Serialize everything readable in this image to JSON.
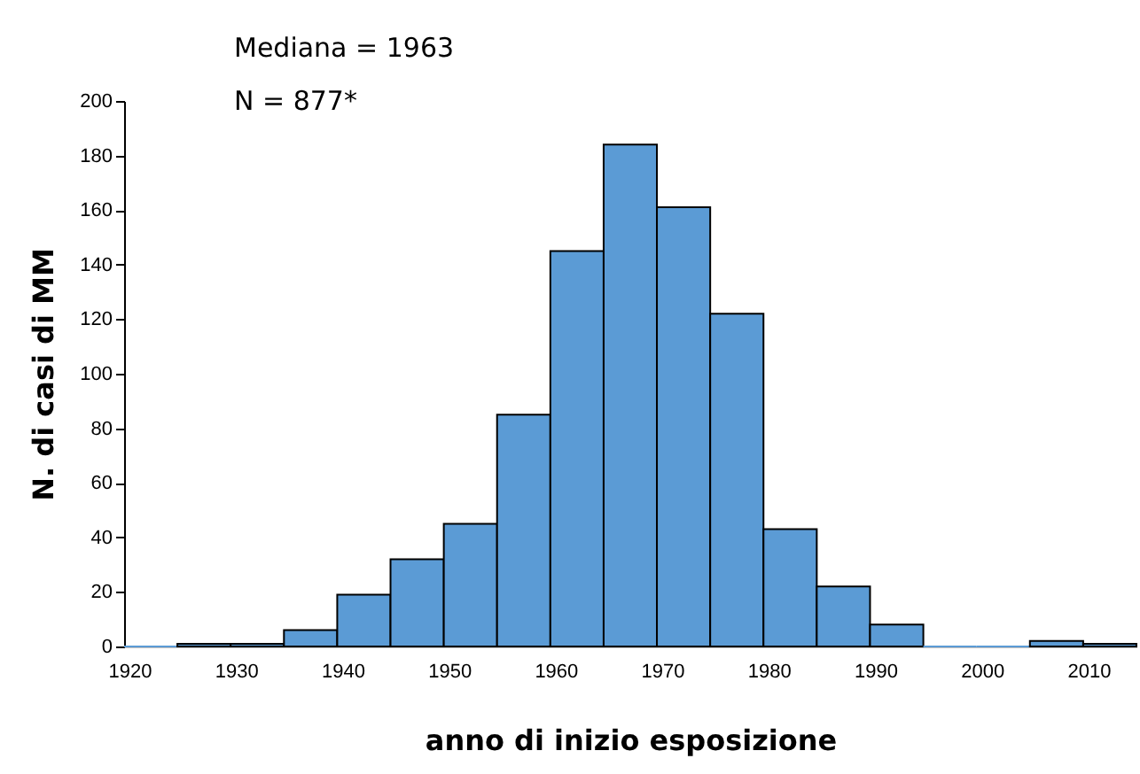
{
  "chart_data": {
    "type": "histogram",
    "xlabel": "anno di inizio esposizione",
    "ylabel": "N. di casi di MM",
    "annotations": [
      "Mediana = 1963",
      "N = 877*"
    ],
    "bins": [
      1919.5,
      1924.5,
      1929.5,
      1934.5,
      1939.5,
      1944.5,
      1949.5,
      1954.5,
      1959.5,
      1964.5,
      1969.5,
      1974.5,
      1979.5,
      1984.5,
      1989.5,
      1994.5,
      1999.5,
      2004.5,
      2009.5,
      2014.5
    ],
    "values": [
      0,
      1,
      1,
      6,
      19,
      32,
      45,
      85,
      145,
      184,
      161,
      122,
      43,
      22,
      8,
      0,
      0,
      2,
      1
    ],
    "color": "#5b9bd5",
    "xlim": [
      1919.5,
      2014.5
    ],
    "xticks": [
      1920,
      1930,
      1940,
      1950,
      1960,
      1970,
      1980,
      1990,
      2000,
      2010
    ],
    "ylim": [
      0,
      200
    ],
    "yticks": [
      0,
      20,
      40,
      60,
      80,
      100,
      120,
      140,
      160,
      180,
      200
    ],
    "grid": false
  }
}
